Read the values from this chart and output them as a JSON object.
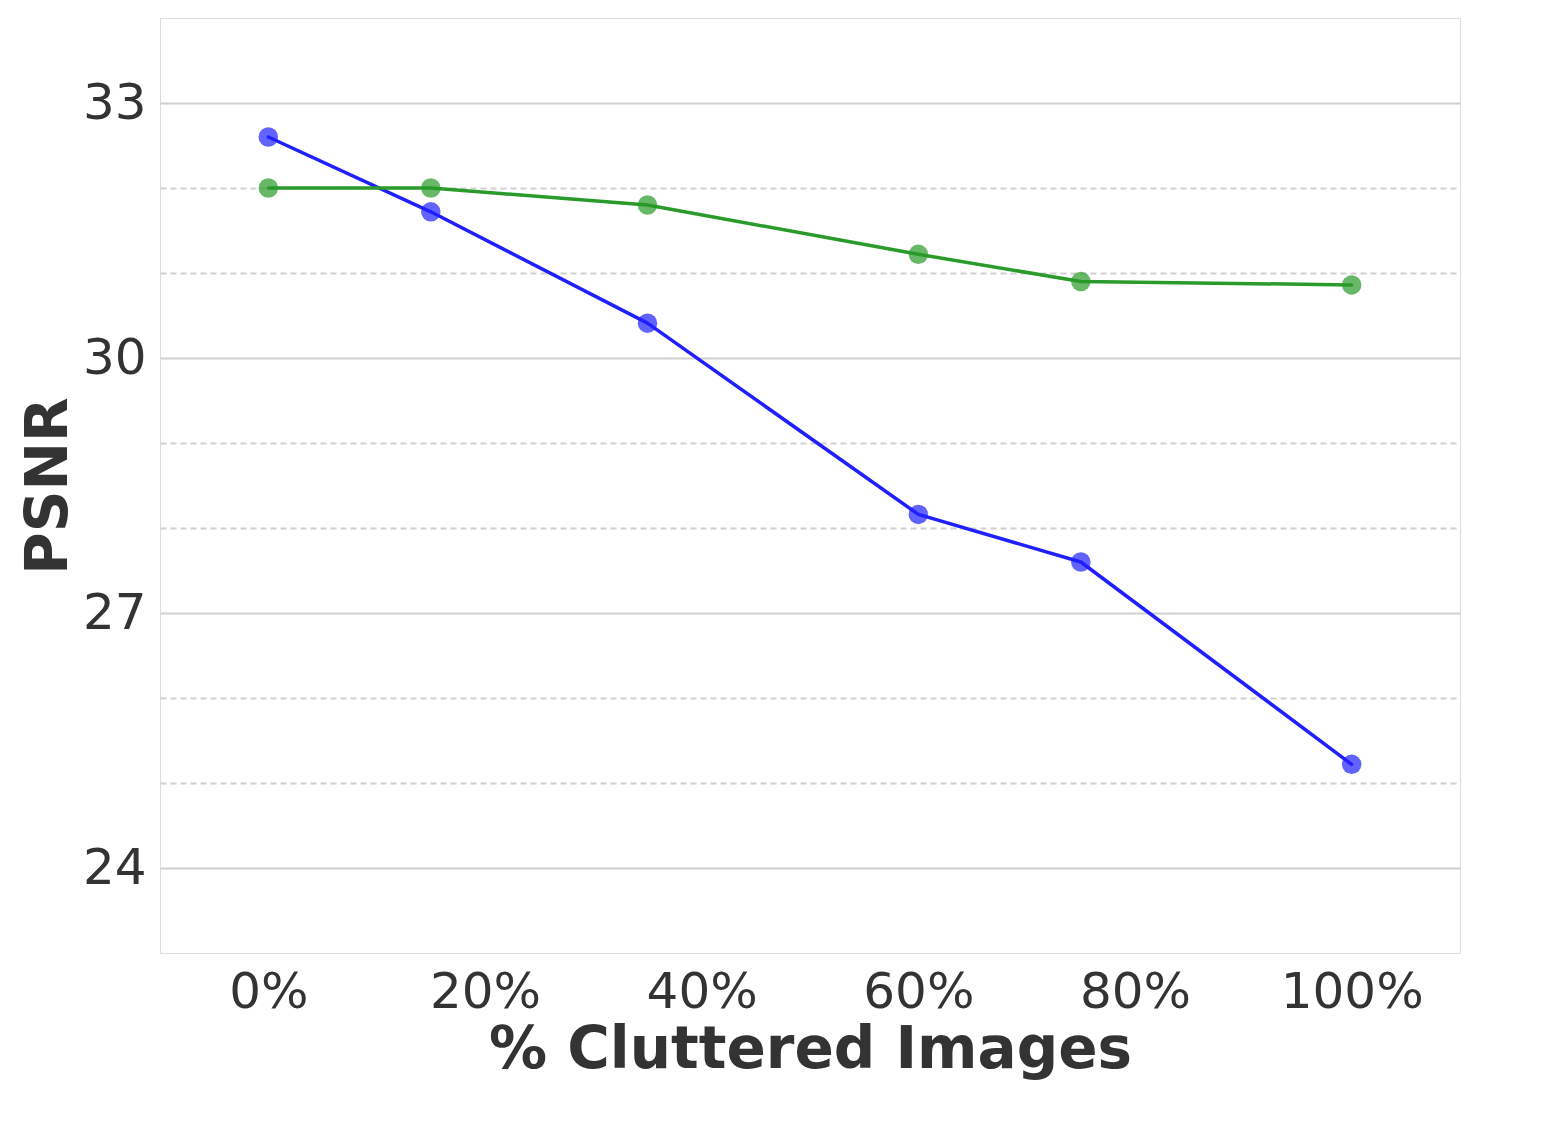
{
  "chart_data": {
    "type": "line",
    "xlabel": "% Cluttered Images",
    "ylabel": "PSNR",
    "x": [
      0,
      15,
      35,
      60,
      75,
      100
    ],
    "series": [
      {
        "color": "#1f1fff",
        "values": [
          32.6,
          31.72,
          30.41,
          28.16,
          27.6,
          25.22
        ]
      },
      {
        "color": "#2a9a2a",
        "values": [
          32.0,
          32.0,
          31.8,
          31.22,
          30.9,
          30.86
        ]
      }
    ],
    "xlim": [
      -10,
      110
    ],
    "xticks": [
      {
        "value": 0,
        "label": "0%"
      },
      {
        "value": 20,
        "label": "20%"
      },
      {
        "value": 40,
        "label": "40%"
      },
      {
        "value": 60,
        "label": "60%"
      },
      {
        "value": 80,
        "label": "80%"
      },
      {
        "value": 100,
        "label": "100%"
      }
    ],
    "ylim": [
      23,
      34
    ],
    "yticks": [
      24,
      {
        "value": 25,
        "label": null
      },
      {
        "value": 26,
        "label": null
      },
      27,
      {
        "value": 28,
        "label": null
      },
      {
        "value": 29,
        "label": null
      },
      30,
      {
        "value": 31,
        "label": null
      },
      {
        "value": 32,
        "label": null
      },
      33
    ],
    "grid": "y",
    "marker": "circle",
    "line_style": "solid"
  }
}
